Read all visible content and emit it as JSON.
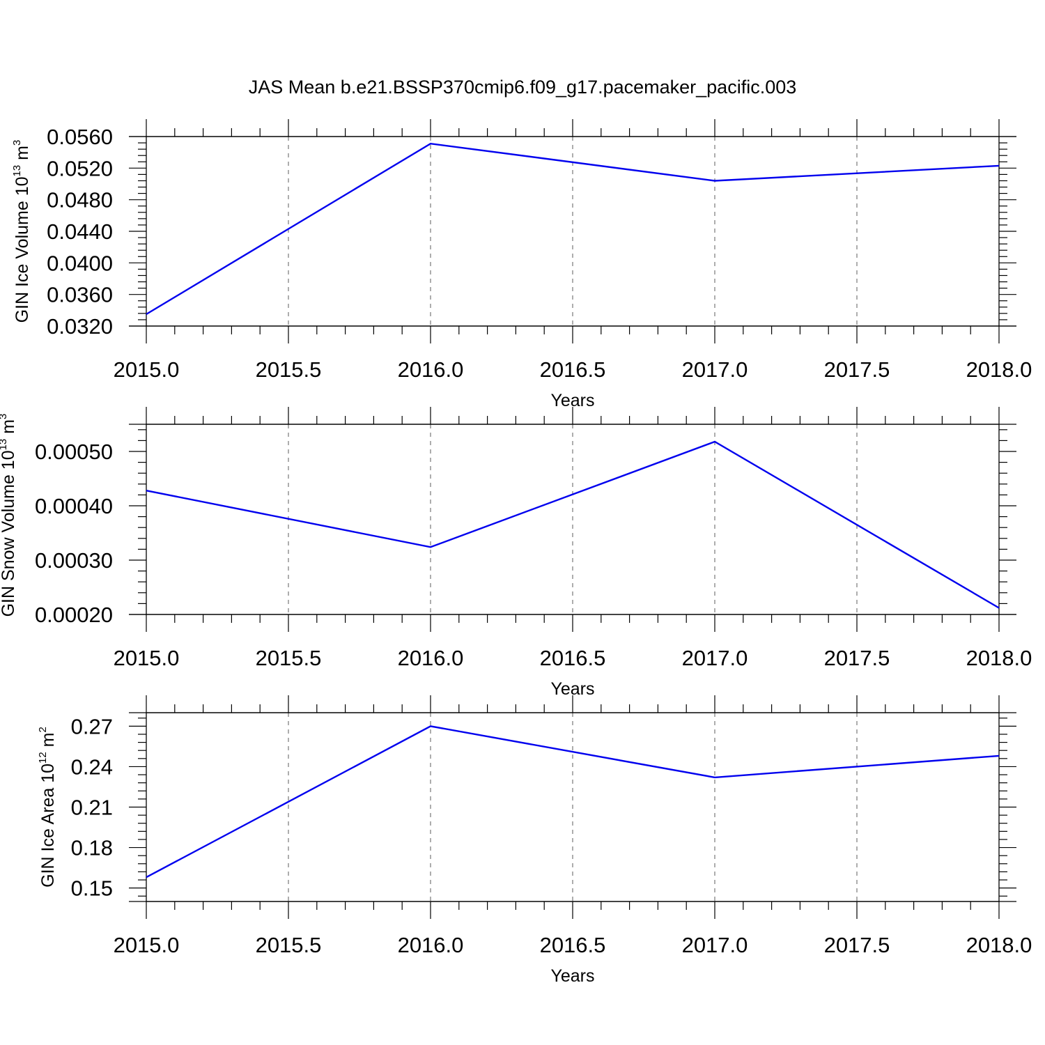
{
  "figure": {
    "title": "JAS Mean b.e21.BSSP370cmip6.f09_g17.pacemaker_pacific.003"
  },
  "chart_data": [
    {
      "type": "line",
      "xlabel": "Years",
      "ylabel": {
        "text": "GIN Ice Volume 10",
        "exp": "13",
        "unit": " m",
        "unit_exp": "3"
      },
      "xlim": [
        2015.0,
        2018.0
      ],
      "ylim": [
        0.032,
        0.056
      ],
      "xticks": [
        "2015.0",
        "2015.5",
        "2016.0",
        "2016.5",
        "2017.0",
        "2017.5",
        "2018.0"
      ],
      "yticks": [
        "0.0320",
        "0.0360",
        "0.0400",
        "0.0440",
        "0.0480",
        "0.0520",
        "0.0560"
      ],
      "grid": "vertical dashed",
      "series": [
        {
          "color": "#0000ee",
          "x": [
            2015,
            2016,
            2017,
            2018
          ],
          "y": [
            0.0335,
            0.0551,
            0.0504,
            0.0523
          ]
        }
      ]
    },
    {
      "type": "line",
      "xlabel": "Years",
      "ylabel": {
        "text": "GIN Snow Volume 10",
        "exp": "13",
        "unit": " m",
        "unit_exp": "3"
      },
      "xlim": [
        2015.0,
        2018.0
      ],
      "ylim": [
        0.0002,
        0.00055
      ],
      "xticks": [
        "2015.0",
        "2015.5",
        "2016.0",
        "2016.5",
        "2017.0",
        "2017.5",
        "2018.0"
      ],
      "yticks": [
        "0.00020",
        "0.00030",
        "0.00040",
        "0.00050"
      ],
      "grid": "vertical dashed",
      "series": [
        {
          "color": "#0000ee",
          "x": [
            2015,
            2016,
            2017,
            2018
          ],
          "y": [
            0.000428,
            0.000324,
            0.000518,
            0.000212
          ]
        }
      ]
    },
    {
      "type": "line",
      "xlabel": "Years",
      "ylabel": {
        "text": "GIN Ice Area 10",
        "exp": "12",
        "unit": " m",
        "unit_exp": "2"
      },
      "xlim": [
        2015.0,
        2018.0
      ],
      "ylim": [
        0.14,
        0.28
      ],
      "xticks": [
        "2015.0",
        "2015.5",
        "2016.0",
        "2016.5",
        "2017.0",
        "2017.5",
        "2018.0"
      ],
      "yticks": [
        "0.15",
        "0.18",
        "0.21",
        "0.24",
        "0.27"
      ],
      "grid": "vertical dashed",
      "series": [
        {
          "color": "#0000ee",
          "x": [
            2015,
            2016,
            2017,
            2018
          ],
          "y": [
            0.158,
            0.27,
            0.232,
            0.248
          ]
        }
      ]
    }
  ]
}
